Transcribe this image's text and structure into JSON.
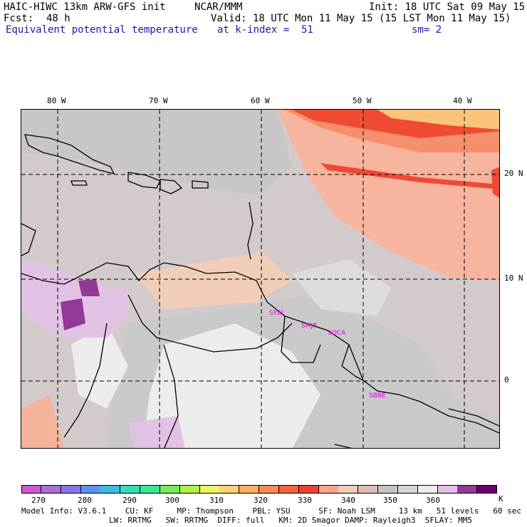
{
  "header": {
    "model": "HAIC-HIWC 13km ARW-GFS init",
    "org": "NCAR/MMM",
    "init": "Init: 18 UTC Sat 09 May 15",
    "fcst_label": "Fcst:",
    "fcst_value": "48 h",
    "valid": "Valid: 18 UTC Mon 11 May 15 (15 LST Mon 11 May 15)",
    "field": "Equivalent potential temperature",
    "level": "at k-index =  51",
    "smooth": "sm= 2"
  },
  "lon_labels": [
    "80 W",
    "70 W",
    "60 W",
    "50 W",
    "40 W"
  ],
  "lat_labels": [
    "20 N",
    "10 N",
    "0"
  ],
  "stations": [
    "SYEL",
    "SMJP",
    "SOCA",
    "SBBE"
  ],
  "colorbar": {
    "unit": "K",
    "tick_labels": [
      "270",
      "280",
      "290",
      "300",
      "310",
      "320",
      "330",
      "340",
      "350",
      "360"
    ],
    "colors": [
      "#c85ad2",
      "#a772cf",
      "#8a77e6",
      "#5f92ee",
      "#3dbbe3",
      "#37dcb8",
      "#3ee691",
      "#76ec5d",
      "#b2f04a",
      "#e9f56c",
      "#fbd07a",
      "#fbb064",
      "#f98c54",
      "#f5623f",
      "#ef4130",
      "#f8a58c",
      "#f1ccb8",
      "#dcc0b4",
      "#c9c2c2",
      "#d6d6d6",
      "#ededed",
      "#e2c2e4",
      "#933996",
      "#6a006a"
    ]
  },
  "footer": {
    "line1": "Model Info: V3.6.1    CU: KF     MP: Thompson    PBL: YSU      SF: Noah LSM     13 km   51 levels   60 sec",
    "line2": "LW: RRTMG   SW: RRTMG  DIFF: full   KM: 2D Smagor DAMP: Rayleigh3  SFLAY: MM5"
  }
}
